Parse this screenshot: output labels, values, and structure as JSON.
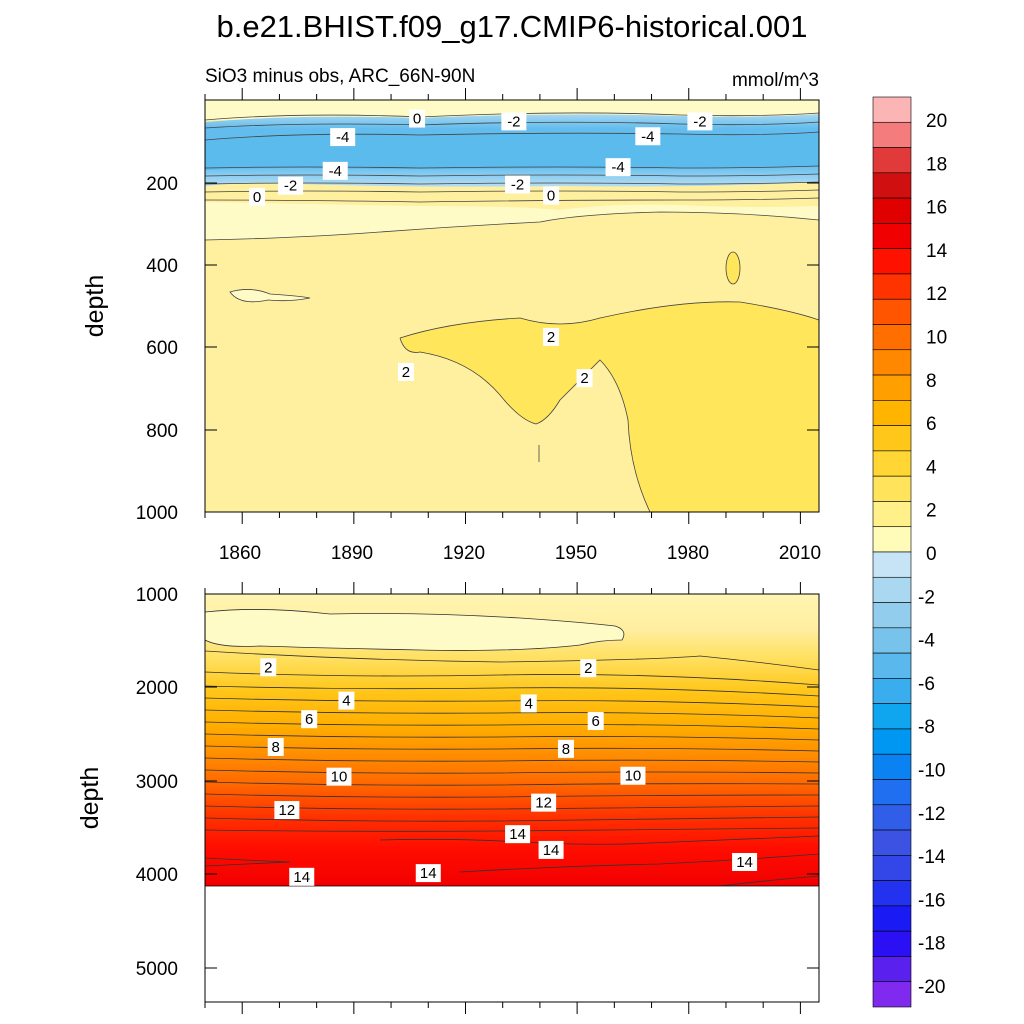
{
  "figure": {
    "title": "b.e21.BHIST.f09_g17.CMIP6-historical.001",
    "subtitle_left": "SiO3 minus obs, ARC_66N-90N",
    "subtitle_right": "mmol/m^3"
  },
  "colorbar": {
    "labels": [
      "20",
      "18",
      "16",
      "14",
      "12",
      "10",
      "8",
      "6",
      "4",
      "2",
      "0",
      "-2",
      "-4",
      "-6",
      "-8",
      "-10",
      "-12",
      "-14",
      "-16",
      "-18",
      "-20"
    ],
    "colors_top_to_bottom": [
      "#fbb5b5",
      "#f47c7c",
      "#e13a3a",
      "#d01010",
      "#e00000",
      "#f00000",
      "#ff1100",
      "#ff3300",
      "#ff5500",
      "#ff6e00",
      "#ff8800",
      "#ff9f00",
      "#ffb400",
      "#ffc71a",
      "#ffd634",
      "#ffe35a",
      "#fff08a",
      "#fffbb8",
      "#c6e4f5",
      "#aad8f0",
      "#92cdee",
      "#78c3ec",
      "#5ab8ec",
      "#39adee",
      "#10a5ef",
      "#0097f2",
      "#0b82f2",
      "#1f6ff0",
      "#305ee8",
      "#3c52e3",
      "#3346e8",
      "#2232ef",
      "#1a1af5",
      "#2a10f2",
      "#5a20ee",
      "#7f2aee"
    ]
  },
  "chart_data": [
    {
      "type": "contour",
      "panel": "upper",
      "xlabel": "",
      "ylabel": "depth",
      "x_ticks": [
        "1860",
        "1890",
        "1920",
        "1950",
        "1980",
        "2010"
      ],
      "y_ticks": [
        "200",
        "400",
        "600",
        "800",
        "1000"
      ],
      "xlim": [
        1850,
        2015
      ],
      "ylim": [
        1000,
        0
      ],
      "contour_labels": [
        {
          "text": "0",
          "year": 1907,
          "depth": 45
        },
        {
          "text": "-2",
          "year": 1933,
          "depth": 52
        },
        {
          "text": "-2",
          "year": 1983,
          "depth": 52
        },
        {
          "text": "-4",
          "year": 1887,
          "depth": 90
        },
        {
          "text": "-4",
          "year": 1969,
          "depth": 88
        },
        {
          "text": "-4",
          "year": 1885,
          "depth": 172
        },
        {
          "text": "-4",
          "year": 1961,
          "depth": 163
        },
        {
          "text": "-2",
          "year": 1873,
          "depth": 208
        },
        {
          "text": "-2",
          "year": 1934,
          "depth": 205
        },
        {
          "text": "0",
          "year": 1864,
          "depth": 235
        },
        {
          "text": "0",
          "year": 1943,
          "depth": 232
        },
        {
          "text": "2",
          "year": 1943,
          "depth": 575
        },
        {
          "text": "2",
          "year": 1904,
          "depth": 660
        },
        {
          "text": "2",
          "year": 1952,
          "depth": 675
        }
      ]
    },
    {
      "type": "contour",
      "panel": "lower",
      "xlabel": "",
      "ylabel": "depth",
      "y_ticks": [
        "1000",
        "2000",
        "3000",
        "4000",
        "5000"
      ],
      "xlim": [
        1850,
        2015
      ],
      "ylim": [
        5400,
        1000
      ],
      "contour_labels": [
        {
          "text": "2",
          "year": 1867,
          "depth": 1790
        },
        {
          "text": "2",
          "year": 1953,
          "depth": 1800
        },
        {
          "text": "4",
          "year": 1888,
          "depth": 2150
        },
        {
          "text": "4",
          "year": 1937,
          "depth": 2180
        },
        {
          "text": "6",
          "year": 1878,
          "depth": 2350
        },
        {
          "text": "6",
          "year": 1955,
          "depth": 2370
        },
        {
          "text": "8",
          "year": 1869,
          "depth": 2650
        },
        {
          "text": "8",
          "year": 1947,
          "depth": 2670
        },
        {
          "text": "10",
          "year": 1886,
          "depth": 2970
        },
        {
          "text": "10",
          "year": 1965,
          "depth": 2960
        },
        {
          "text": "12",
          "year": 1872,
          "depth": 3330
        },
        {
          "text": "12",
          "year": 1941,
          "depth": 3250
        },
        {
          "text": "14",
          "year": 1934,
          "depth": 3590
        },
        {
          "text": "14",
          "year": 1943,
          "depth": 3760
        },
        {
          "text": "14",
          "year": 1995,
          "depth": 3890
        },
        {
          "text": "14",
          "year": 1876,
          "depth": 4050
        },
        {
          "text": "14",
          "year": 1910,
          "depth": 4010
        }
      ]
    }
  ]
}
